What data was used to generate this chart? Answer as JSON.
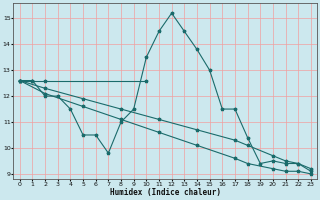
{
  "xlabel": "Humidex (Indice chaleur)",
  "bg_color": "#cce8ee",
  "line_color": "#1a6b6b",
  "grid_color": "#f0a0a0",
  "xlim": [
    -0.5,
    23.5
  ],
  "ylim": [
    8.8,
    15.6
  ],
  "yticks": [
    9,
    10,
    11,
    12,
    13,
    14,
    15
  ],
  "xticks": [
    0,
    1,
    2,
    3,
    4,
    5,
    6,
    7,
    8,
    9,
    10,
    11,
    12,
    13,
    14,
    15,
    16,
    17,
    18,
    19,
    20,
    21,
    22,
    23
  ],
  "series": [
    {
      "x": [
        0,
        1,
        2,
        10
      ],
      "y": [
        12.6,
        12.6,
        12.6,
        12.6
      ]
    },
    {
      "x": [
        0,
        1,
        2,
        3,
        4,
        5,
        6,
        7,
        8,
        9,
        10,
        11,
        12,
        13,
        14,
        15,
        16,
        17,
        18,
        19,
        20,
        21,
        22,
        23
      ],
      "y": [
        12.6,
        12.6,
        12.0,
        12.0,
        11.5,
        10.5,
        10.5,
        9.8,
        11.0,
        11.5,
        13.5,
        14.5,
        15.2,
        14.5,
        13.8,
        13.0,
        11.5,
        11.5,
        10.4,
        9.4,
        9.5,
        9.4,
        9.4,
        9.1
      ]
    },
    {
      "x": [
        0,
        2,
        5,
        8,
        11,
        14,
        17,
        18,
        20,
        21,
        22,
        23
      ],
      "y": [
        12.6,
        12.1,
        11.6,
        11.1,
        10.6,
        10.1,
        9.6,
        9.4,
        9.2,
        9.1,
        9.1,
        9.0
      ]
    },
    {
      "x": [
        0,
        2,
        5,
        8,
        11,
        14,
        17,
        18,
        20,
        21,
        22,
        23
      ],
      "y": [
        12.6,
        12.3,
        11.9,
        11.5,
        11.1,
        10.7,
        10.3,
        10.1,
        9.7,
        9.5,
        9.4,
        9.2
      ]
    }
  ]
}
